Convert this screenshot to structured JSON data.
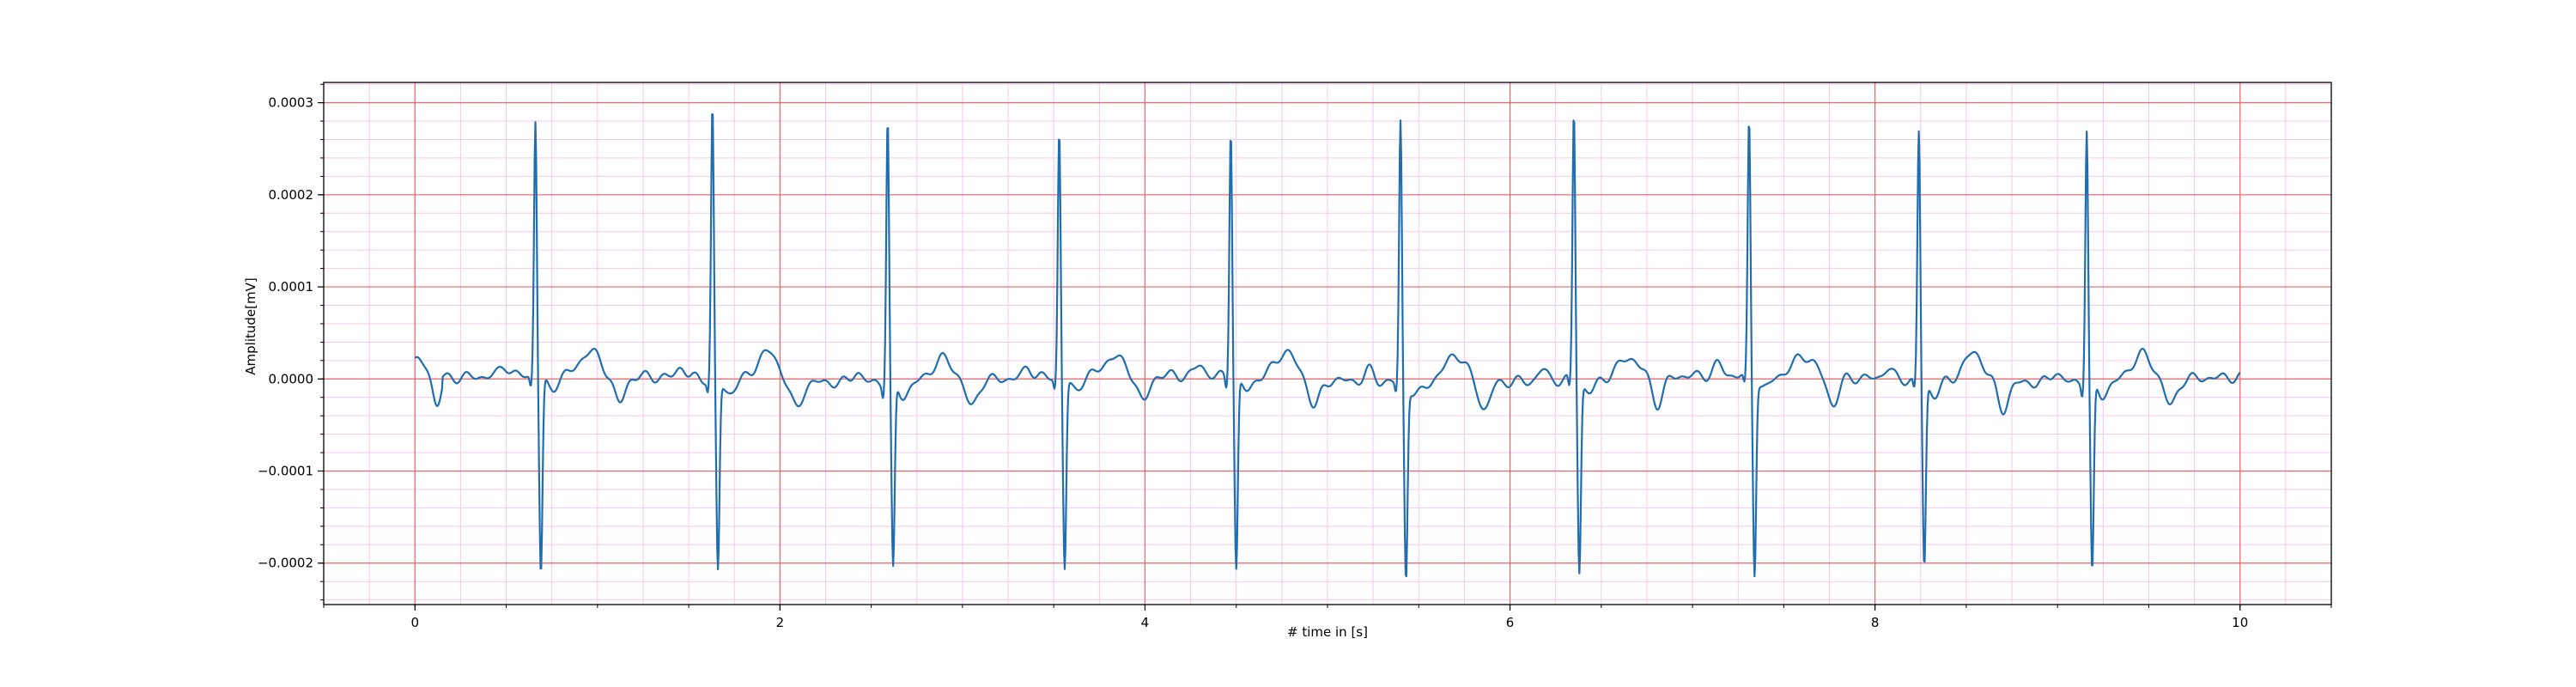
{
  "chart_data": {
    "type": "line",
    "title": "",
    "xlabel": "# time in [s]",
    "ylabel": "Amplitude[mV]",
    "xlim": [
      -0.5,
      10.5
    ],
    "ylim": [
      -0.000245,
      0.000322
    ],
    "x_ticks": [
      0,
      2,
      4,
      6,
      8,
      10
    ],
    "x_tick_labels": [
      "0",
      "2",
      "4",
      "6",
      "8",
      "10"
    ],
    "y_ticks": [
      -0.0002,
      -0.0001,
      0.0,
      0.0001,
      0.0002,
      0.0003
    ],
    "y_tick_labels": [
      "−0.0002",
      "−0.0001",
      "0.0000",
      "0.0001",
      "0.0002",
      "0.0003"
    ],
    "grid": "major and minor",
    "line_color": "#1f6fb0",
    "major_grid_color": "#ee6666",
    "minor_grid_color": "#f7c6f2",
    "sample_rate_hz": 250,
    "beats": [
      {
        "r_time": 0.66,
        "r_peak": 0.000278,
        "s_min": -0.000218
      },
      {
        "r_time": 1.63,
        "r_peak": 0.000296,
        "s_min": -0.00021
      },
      {
        "r_time": 2.59,
        "r_peak": 0.000288,
        "s_min": -0.000208
      },
      {
        "r_time": 3.53,
        "r_peak": 0.000268,
        "s_min": -0.00021
      },
      {
        "r_time": 4.47,
        "r_peak": 0.000272,
        "s_min": -0.000212
      },
      {
        "r_time": 5.4,
        "r_peak": 0.000283,
        "s_min": -0.000215
      },
      {
        "r_time": 6.35,
        "r_peak": 0.000293,
        "s_min": -0.00021
      },
      {
        "r_time": 7.31,
        "r_peak": 0.000276,
        "s_min": -0.000215
      },
      {
        "r_time": 8.24,
        "r_peak": 0.00027,
        "s_min": -0.000205
      },
      {
        "r_time": 9.16,
        "r_peak": 0.000276,
        "s_min": -0.000213
      }
    ],
    "start_value": 1.8e-05,
    "x_end": 10.0
  }
}
